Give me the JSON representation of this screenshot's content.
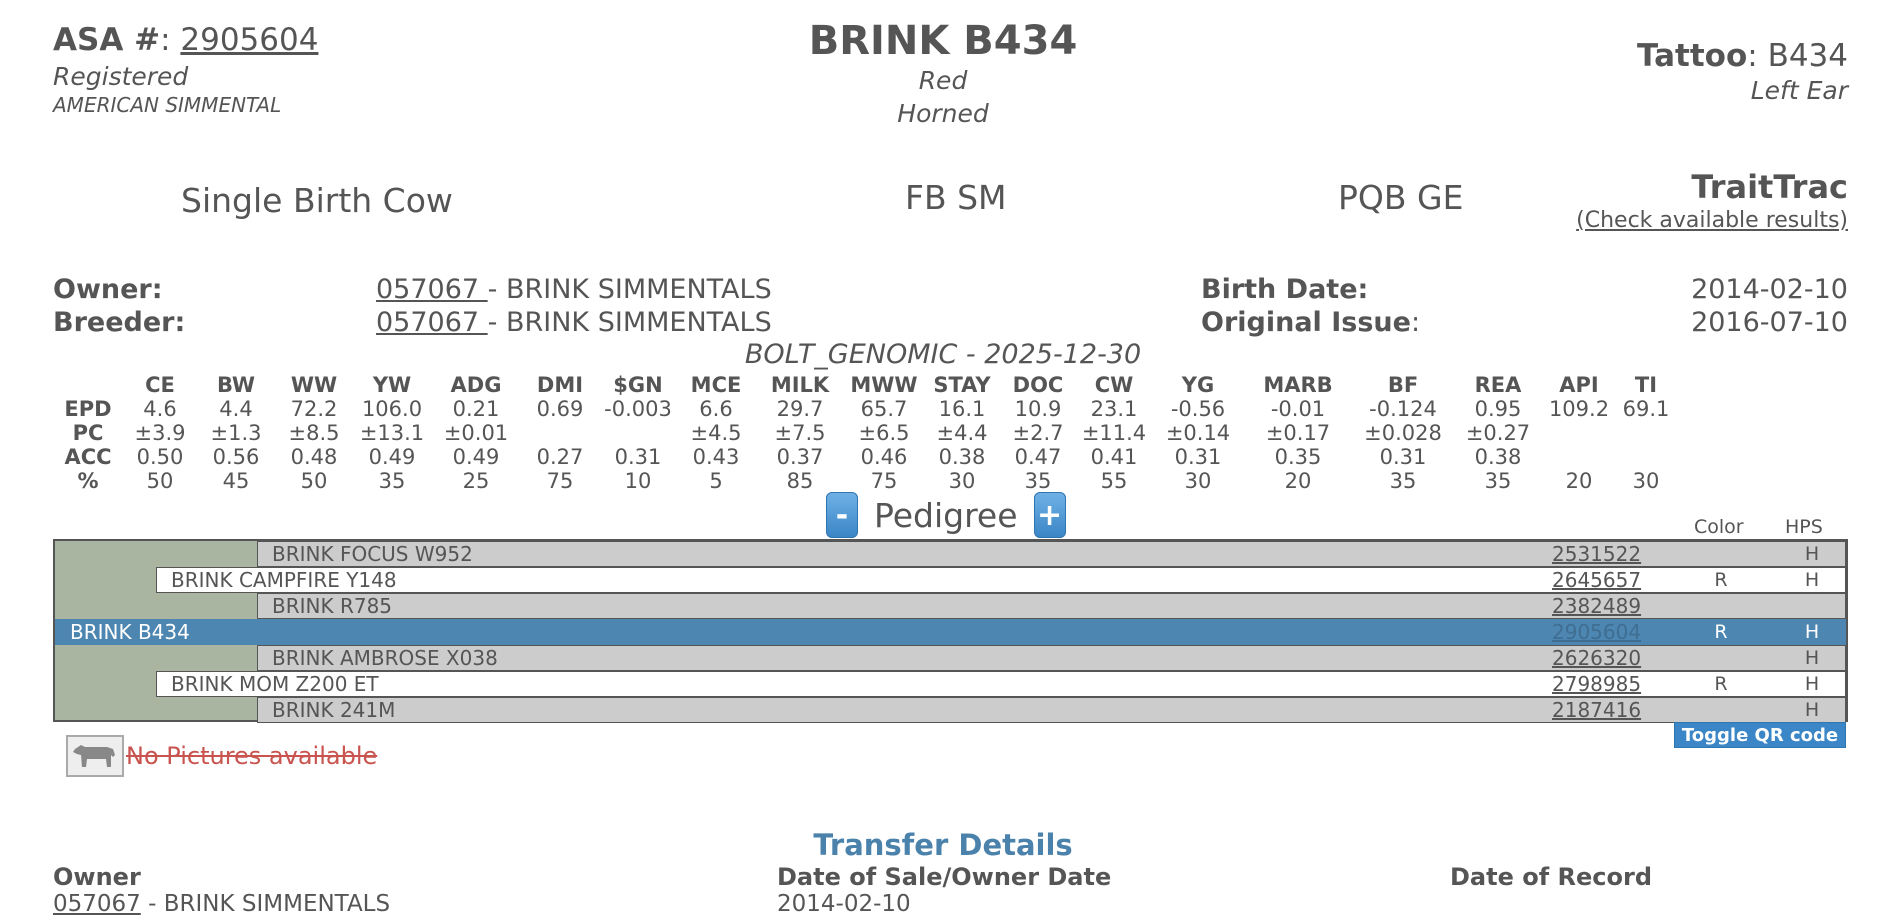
{
  "header": {
    "asa_label": "ASA #",
    "asa_number": "2905604",
    "registration_status": "Registered",
    "breed_assoc": "AMERICAN SIMMENTAL",
    "animal_name": "BRINK B434",
    "color": "Red",
    "horn_status": "Horned",
    "tattoo_label": "Tattoo",
    "tattoo_value": "B434",
    "tattoo_location": "Left Ear"
  },
  "status": {
    "birth_type": "Single Birth Cow",
    "breed_code": "FB SM",
    "program": "PQB GE",
    "traittrac_title": "TraitTrac",
    "traittrac_link": "(Check available results)"
  },
  "info": {
    "owner_label": "Owner:",
    "owner_id": "057067 ",
    "owner_name": "- BRINK SIMMENTALS",
    "breeder_label": "Breeder:",
    "breeder_id": "057067 ",
    "breeder_name": "- BRINK SIMMENTALS",
    "birth_date_label": "Birth Date:",
    "birth_date": "2014-02-10",
    "original_issue_label": "Original Issue",
    "original_issue": "2016-07-10"
  },
  "genomic_label": "BOLT_GENOMIC - 2025-12-30",
  "epd": {
    "columns": [
      "CE",
      "BW",
      "WW",
      "YW",
      "ADG",
      "DMI",
      "$GN",
      "MCE",
      "MILK",
      "MWW",
      "STAY",
      "DOC",
      "CW",
      "YG",
      "MARB",
      "BF",
      "REA",
      "API",
      "TI"
    ],
    "rows": [
      {
        "label": "EPD",
        "values": [
          "4.6",
          "4.4",
          "72.2",
          "106.0",
          "0.21",
          "0.69",
          "-0.003",
          "6.6",
          "29.7",
          "65.7",
          "16.1",
          "10.9",
          "23.1",
          "-0.56",
          "-0.01",
          "-0.124",
          "0.95",
          "109.2",
          "69.1"
        ]
      },
      {
        "label": "PC",
        "values": [
          "±3.9",
          "±1.3",
          "±8.5",
          "±13.1",
          "±0.01",
          "",
          "",
          "±4.5",
          "±7.5",
          "±6.5",
          "±4.4",
          "±2.7",
          "±11.4",
          "±0.14",
          "±0.17",
          "±0.028",
          "±0.27",
          "",
          ""
        ]
      },
      {
        "label": "ACC",
        "values": [
          "0.50",
          "0.56",
          "0.48",
          "0.49",
          "0.49",
          "0.27",
          "0.31",
          "0.43",
          "0.37",
          "0.46",
          "0.38",
          "0.47",
          "0.41",
          "0.31",
          "0.35",
          "0.31",
          "0.38",
          "",
          ""
        ]
      },
      {
        "label": "%",
        "values": [
          "50",
          "45",
          "50",
          "35",
          "25",
          "75",
          "10",
          "5",
          "85",
          "75",
          "30",
          "35",
          "55",
          "30",
          "20",
          "35",
          "35",
          "20",
          "30"
        ]
      }
    ]
  },
  "pedigree": {
    "title": "Pedigree",
    "minus": "-",
    "plus": "+",
    "color_header": "Color",
    "hps_header": "HPS",
    "rows": [
      {
        "name": "BRINK FOCUS W952",
        "reg": "2531522",
        "color": "",
        "hps": "H"
      },
      {
        "name": "BRINK CAMPFIRE Y148",
        "reg": "2645657",
        "color": "R",
        "hps": "H"
      },
      {
        "name": "BRINK R785",
        "reg": "2382489",
        "color": "",
        "hps": ""
      },
      {
        "name": "BRINK B434",
        "reg": "2905604",
        "color": "R",
        "hps": "H"
      },
      {
        "name": "BRINK AMBROSE X038",
        "reg": "2626320",
        "color": "",
        "hps": "H"
      },
      {
        "name": "BRINK MOM Z200 ET",
        "reg": "2798985",
        "color": "R",
        "hps": "H"
      },
      {
        "name": "BRINK 241M",
        "reg": "2187416",
        "color": "",
        "hps": "H"
      }
    ]
  },
  "qr_toggle": "Toggle QR code",
  "no_pictures": "No Pictures available",
  "transfer": {
    "title": "Transfer Details",
    "owner_header": "Owner",
    "date_header": "Date of Sale/Owner Date",
    "record_header": "Date of Record",
    "owner_id": "057067",
    "owner_name": " - BRINK SIMMENTALS",
    "date": "2014-02-10"
  }
}
